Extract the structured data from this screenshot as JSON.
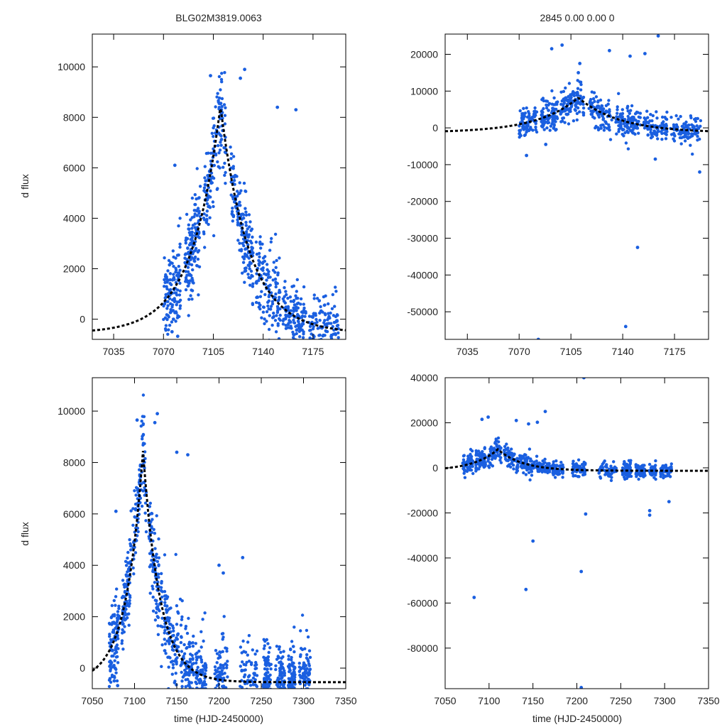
{
  "figure": {
    "title": "BLG02M3819.0063",
    "subtitle": "2845   0.00   0.00   0",
    "xlabel": "time (HJD-2450000)",
    "ylabel": "d flux"
  },
  "colors": {
    "points": "#1a5fe0",
    "model": "#000000",
    "axes": "#000000",
    "text": "#222222"
  },
  "chart_data": [
    {
      "type": "scatter",
      "panel": "top-left",
      "title": "BLG02M3819.0063",
      "xlabel": "",
      "ylabel": "d flux",
      "xlim": [
        7020,
        7198
      ],
      "ylim": [
        -800,
        11300
      ],
      "xticks": [
        7035,
        7070,
        7105,
        7140,
        7175
      ],
      "yticks": [
        0,
        2000,
        4000,
        6000,
        8000,
        10000
      ],
      "series": [
        {
          "name": "photometry",
          "kind": "points",
          "seed": 1,
          "n": 950,
          "model_amp": 9000,
          "t0": 7110,
          "tau": 20,
          "noise_early": 800,
          "noise_mid": 900,
          "noise_late": 600,
          "points": [
            [
              7103,
              9650
            ],
            [
              7127,
              9900
            ],
            [
              7124,
              9550
            ],
            [
              7150,
              8400
            ],
            [
              7163,
              8300
            ],
            [
              7078,
              6100
            ],
            [
              7077,
              0
            ],
            [
              7076,
              -500
            ],
            [
              7080,
              -680
            ]
          ],
          "x_clusters": [
            [
              7070,
              7082
            ],
            [
              7085,
              7096
            ],
            [
              7098,
              7114
            ],
            [
              7117,
              7133
            ],
            [
              7135,
              7152
            ],
            [
              7154,
              7170
            ],
            [
              7172,
              7193
            ]
          ]
        },
        {
          "name": "model",
          "kind": "dashed-line",
          "amp": 9000,
          "t0": 7110,
          "tau": 20,
          "offset": -550
        }
      ]
    },
    {
      "type": "scatter",
      "panel": "top-right",
      "title": "2845   0.00   0.00   0",
      "xlabel": "",
      "ylabel": "",
      "xlim": [
        7020,
        7198
      ],
      "ylim": [
        -57500,
        25500
      ],
      "xticks": [
        7035,
        7070,
        7105,
        7140,
        7175
      ],
      "yticks": [
        -50000,
        -40000,
        -30000,
        -20000,
        -10000,
        0,
        10000,
        20000
      ],
      "series": [
        {
          "name": "photometry",
          "kind": "points",
          "seed": 2,
          "n": 700,
          "model_amp": 9500,
          "t0": 7110,
          "tau": 28,
          "noise_early": 2000,
          "noise_mid": 2200,
          "noise_late": 1600,
          "points": [
            [
              7092,
              21500
            ],
            [
              7099,
              22500
            ],
            [
              7131,
              21000
            ],
            [
              7145,
              19500
            ],
            [
              7155,
              20200
            ],
            [
              7164,
              25000
            ],
            [
              7110,
              15000
            ],
            [
              7111,
              17500
            ],
            [
              7150,
              -32500
            ],
            [
              7142,
              -54000
            ],
            [
              7083,
              -57500
            ],
            [
              7075,
              -7500
            ],
            [
              7088,
              -4500
            ],
            [
              7162,
              -8500
            ],
            [
              7192,
              -12000
            ]
          ],
          "x_clusters": [
            [
              7070,
              7082
            ],
            [
              7085,
              7096
            ],
            [
              7098,
              7114
            ],
            [
              7117,
              7133
            ],
            [
              7135,
              7152
            ],
            [
              7154,
              7170
            ],
            [
              7172,
              7193
            ]
          ]
        },
        {
          "name": "model",
          "kind": "dashed-line",
          "amp": 9500,
          "t0": 7110,
          "tau": 28,
          "offset": -1300
        }
      ]
    },
    {
      "type": "scatter",
      "panel": "bottom-left",
      "title": "",
      "xlabel": "time (HJD-2450000)",
      "ylabel": "d flux",
      "xlim": [
        7050,
        7350
      ],
      "ylim": [
        -800,
        11300
      ],
      "xticks": [
        7050,
        7100,
        7150,
        7200,
        7250,
        7300,
        7350
      ],
      "yticks": [
        0,
        2000,
        4000,
        6000,
        8000,
        10000
      ],
      "series": [
        {
          "name": "photometry",
          "kind": "points",
          "seed": 3,
          "n": 1300,
          "model_amp": 9000,
          "t0": 7110,
          "tau": 20,
          "noise_early": 800,
          "noise_mid": 900,
          "noise_late": 700,
          "points": [
            [
              7103,
              9650
            ],
            [
              7127,
              9900
            ],
            [
              7124,
              9550
            ],
            [
              7150,
              8400
            ],
            [
              7163,
              8300
            ],
            [
              7078,
              6100
            ],
            [
              7200,
              4000
            ],
            [
              7205,
              3700
            ],
            [
              7228,
              4300
            ],
            [
              7077,
              0
            ],
            [
              7076,
              -500
            ],
            [
              7080,
              -680
            ]
          ],
          "x_clusters": [
            [
              7070,
              7082
            ],
            [
              7085,
              7096
            ],
            [
              7098,
              7114
            ],
            [
              7117,
              7133
            ],
            [
              7135,
              7152
            ],
            [
              7154,
              7170
            ],
            [
              7172,
              7185
            ],
            [
              7195,
              7210
            ],
            [
              7225,
              7245
            ],
            [
              7252,
              7262
            ],
            [
              7267,
              7278
            ],
            [
              7282,
              7290
            ],
            [
              7295,
              7308
            ]
          ]
        },
        {
          "name": "model",
          "kind": "dashed-line",
          "amp": 9000,
          "t0": 7110,
          "tau": 20,
          "offset": -550
        }
      ]
    },
    {
      "type": "scatter",
      "panel": "bottom-right",
      "title": "",
      "xlabel": "time (HJD-2450000)",
      "ylabel": "",
      "xlim": [
        7050,
        7350
      ],
      "ylim": [
        -98000,
        40000
      ],
      "xticks": [
        7050,
        7100,
        7150,
        7200,
        7250,
        7300,
        7350
      ],
      "yticks": [
        -80000,
        -60000,
        -40000,
        -20000,
        0,
        20000,
        40000
      ],
      "series": [
        {
          "name": "photometry",
          "kind": "points",
          "seed": 4,
          "n": 850,
          "model_amp": 9500,
          "t0": 7110,
          "tau": 28,
          "noise_early": 2000,
          "noise_mid": 2200,
          "noise_late": 1500,
          "points": [
            [
              7092,
              21500
            ],
            [
              7099,
              22500
            ],
            [
              7131,
              21000
            ],
            [
              7145,
              19500
            ],
            [
              7155,
              20200
            ],
            [
              7164,
              25000
            ],
            [
              7150,
              -32500
            ],
            [
              7142,
              -54000
            ],
            [
              7083,
              -57500
            ],
            [
              7208,
              40000
            ],
            [
              7205,
              -46000
            ],
            [
              7210,
              -20500
            ],
            [
              7205,
              -97500
            ],
            [
              7283,
              -21000
            ],
            [
              7283,
              -19000
            ],
            [
              7305,
              -15000
            ]
          ],
          "x_clusters": [
            [
              7070,
              7082
            ],
            [
              7085,
              7096
            ],
            [
              7098,
              7114
            ],
            [
              7117,
              7133
            ],
            [
              7135,
              7152
            ],
            [
              7154,
              7170
            ],
            [
              7172,
              7185
            ],
            [
              7195,
              7210
            ],
            [
              7225,
              7245
            ],
            [
              7252,
              7262
            ],
            [
              7267,
              7278
            ],
            [
              7282,
              7290
            ],
            [
              7295,
              7308
            ]
          ]
        },
        {
          "name": "model",
          "kind": "dashed-line",
          "amp": 9500,
          "t0": 7110,
          "tau": 28,
          "offset": -1300
        }
      ]
    }
  ]
}
